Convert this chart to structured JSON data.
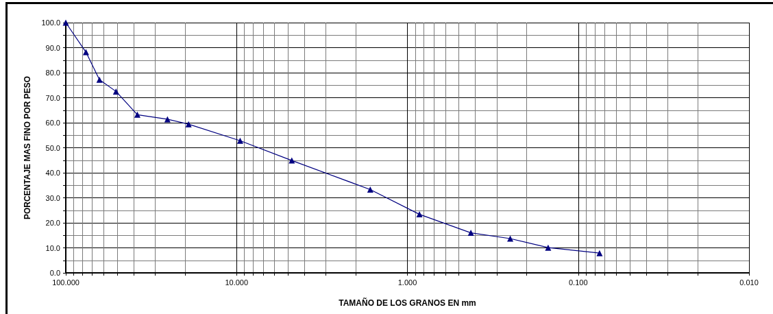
{
  "chart_data": {
    "type": "line",
    "xlabel": "TAMAÑO DE LOS GRANOS EN mm",
    "ylabel": "PORCENTAJE MAS FINO POR PESO",
    "x": [
      100,
      76.2,
      63.5,
      50.8,
      38.1,
      25.4,
      19.1,
      9.53,
      4.75,
      1.65,
      0.85,
      0.425,
      0.25,
      0.15,
      0.075
    ],
    "series": [
      {
        "color": "#000080",
        "values": [
          100,
          88.2,
          77.2,
          72.5,
          63.2,
          61.4,
          59.4,
          52.8,
          44.9,
          33.3,
          23.4,
          16.0,
          13.7,
          10.1,
          7.9
        ]
      }
    ],
    "log": "x",
    "xlim": [
      100,
      0.01
    ],
    "xticks": [
      {
        "value": 100,
        "label": "100.000"
      },
      {
        "value": 90,
        "label": null
      },
      {
        "value": 80,
        "label": null
      },
      {
        "value": 70,
        "label": null
      },
      {
        "value": 60,
        "label": null
      },
      {
        "value": 50,
        "label": null
      },
      {
        "value": 40,
        "label": null
      },
      {
        "value": 30,
        "label": null
      },
      {
        "value": 20,
        "label": null
      },
      {
        "value": 10,
        "label": "10.000"
      },
      {
        "value": 9,
        "label": null
      },
      {
        "value": 8,
        "label": null
      },
      {
        "value": 7,
        "label": null
      },
      {
        "value": 6,
        "label": null
      },
      {
        "value": 5,
        "label": null
      },
      {
        "value": 4,
        "label": null
      },
      {
        "value": 3,
        "label": null
      },
      {
        "value": 2,
        "label": null
      },
      {
        "value": 1,
        "label": "1.000"
      },
      {
        "value": 0.9,
        "label": null
      },
      {
        "value": 0.8,
        "label": null
      },
      {
        "value": 0.7,
        "label": null
      },
      {
        "value": 0.6,
        "label": null
      },
      {
        "value": 0.5,
        "label": null
      },
      {
        "value": 0.4,
        "label": null
      },
      {
        "value": 0.3,
        "label": null
      },
      {
        "value": 0.2,
        "label": null
      },
      {
        "value": 0.1,
        "label": "0.100"
      },
      {
        "value": 0.09,
        "label": null
      },
      {
        "value": 0.08,
        "label": null
      },
      {
        "value": 0.07,
        "label": null
      },
      {
        "value": 0.06,
        "label": null
      },
      {
        "value": 0.05,
        "label": null
      },
      {
        "value": 0.04,
        "label": null
      },
      {
        "value": 0.03,
        "label": null
      },
      {
        "value": 0.02,
        "label": null
      },
      {
        "value": 0.01,
        "label": "0.010"
      }
    ],
    "ylim": [
      0,
      100
    ],
    "yticks": [
      {
        "value": 0,
        "label": "0.0"
      },
      {
        "value": 5,
        "label": null
      },
      {
        "value": 10,
        "label": "10.0"
      },
      {
        "value": 15,
        "label": null
      },
      {
        "value": 20,
        "label": "20.0"
      },
      {
        "value": 25,
        "label": null
      },
      {
        "value": 30,
        "label": "30.0"
      },
      {
        "value": 35,
        "label": null
      },
      {
        "value": 40,
        "label": "40.0"
      },
      {
        "value": 45,
        "label": null
      },
      {
        "value": 50,
        "label": "50.0"
      },
      {
        "value": 55,
        "label": null
      },
      {
        "value": 60,
        "label": "60.0"
      },
      {
        "value": 65,
        "label": null
      },
      {
        "value": 70,
        "label": "70.0"
      },
      {
        "value": 75,
        "label": null
      },
      {
        "value": 80,
        "label": "80.0"
      },
      {
        "value": 85,
        "label": null
      },
      {
        "value": 90,
        "label": "90.0"
      },
      {
        "value": 95,
        "label": null
      },
      {
        "value": 100,
        "label": "100.0"
      }
    ],
    "grid": true,
    "marker": "triangle",
    "line_style": "solid"
  }
}
